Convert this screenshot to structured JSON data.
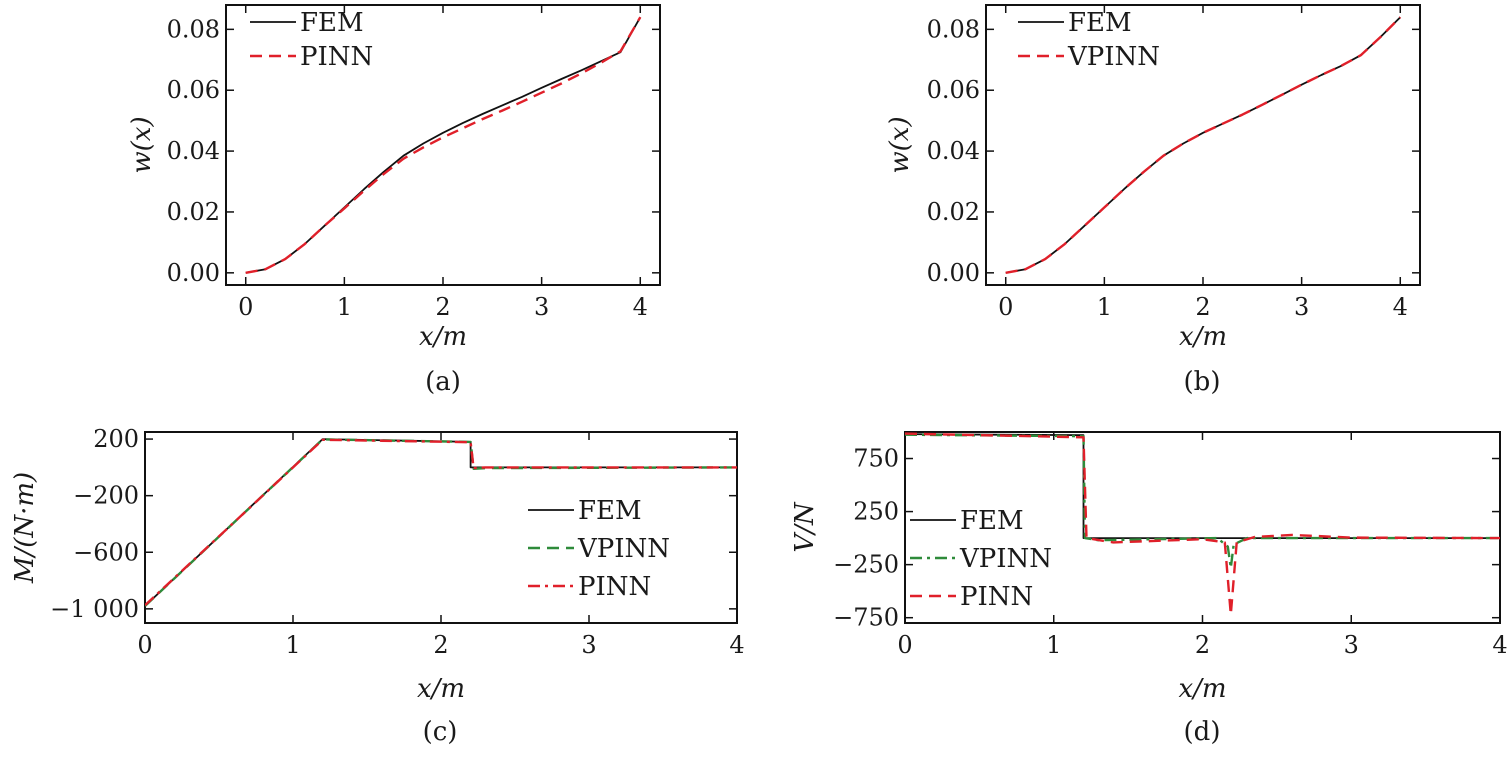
{
  "colors": {
    "fem": "#111111",
    "pinn": "#e0202a",
    "vpinn": "#2e8b3a",
    "axis": "#111111"
  },
  "chart_data": [
    {
      "panel": "a",
      "caption": "(a)",
      "type": "line",
      "xlabel": "x/m",
      "ylabel": "w(x)",
      "xlim": [
        -0.2,
        4.2
      ],
      "ylim": [
        -0.004,
        0.088
      ],
      "xticks": [
        0,
        1,
        2,
        3,
        4
      ],
      "xticklabels": [
        "0",
        "1",
        "2",
        "3",
        "4"
      ],
      "yticks": [
        0,
        0.02,
        0.04,
        0.06,
        0.08
      ],
      "yticklabels": [
        "0.00",
        "0.02",
        "0.04",
        "0.06",
        "0.08"
      ],
      "legend_loc": "top-left",
      "series": [
        {
          "name": "FEM",
          "style": "solid",
          "color": "#111111",
          "x": [
            0,
            0.2,
            0.4,
            0.6,
            0.8,
            1.0,
            1.2,
            1.4,
            1.6,
            1.8,
            2.0,
            2.2,
            2.4,
            2.6,
            2.8,
            3.0,
            3.2,
            3.4,
            3.6,
            3.8,
            4.0
          ],
          "y": [
            0,
            0.0012,
            0.0045,
            0.0095,
            0.0155,
            0.0215,
            0.0275,
            0.0332,
            0.0385,
            0.0425,
            0.046,
            0.0492,
            0.0522,
            0.055,
            0.0578,
            0.0608,
            0.0637,
            0.0665,
            0.0695,
            0.0725,
            0.084
          ]
        },
        {
          "name": "PINN",
          "style": "dashed",
          "color": "#e0202a",
          "x": [
            0,
            0.2,
            0.4,
            0.6,
            0.8,
            1.0,
            1.2,
            1.4,
            1.6,
            1.8,
            2.0,
            2.2,
            2.4,
            2.6,
            2.8,
            3.0,
            3.2,
            3.4,
            3.6,
            3.8,
            4.0
          ],
          "y": [
            0,
            0.0012,
            0.0045,
            0.0095,
            0.0155,
            0.0212,
            0.027,
            0.0325,
            0.0375,
            0.0412,
            0.0445,
            0.0475,
            0.0505,
            0.0533,
            0.0562,
            0.0592,
            0.0622,
            0.0655,
            0.069,
            0.0728,
            0.084
          ]
        }
      ]
    },
    {
      "panel": "b",
      "caption": "(b)",
      "type": "line",
      "xlabel": "x/m",
      "ylabel": "w(x)",
      "xlim": [
        -0.2,
        4.2
      ],
      "ylim": [
        -0.004,
        0.088
      ],
      "xticks": [
        0,
        1,
        2,
        3,
        4
      ],
      "xticklabels": [
        "0",
        "1",
        "2",
        "3",
        "4"
      ],
      "yticks": [
        0,
        0.02,
        0.04,
        0.06,
        0.08
      ],
      "yticklabels": [
        "0.00",
        "0.02",
        "0.04",
        "0.06",
        "0.08"
      ],
      "legend_loc": "top-left",
      "series": [
        {
          "name": "FEM",
          "style": "solid",
          "color": "#111111",
          "x": [
            0,
            0.2,
            0.4,
            0.6,
            0.8,
            1.0,
            1.2,
            1.4,
            1.6,
            1.8,
            2.0,
            2.2,
            2.4,
            2.6,
            2.8,
            3.0,
            3.2,
            3.4,
            3.6,
            3.8,
            4.0
          ],
          "y": [
            0,
            0.0012,
            0.0045,
            0.0095,
            0.0155,
            0.0215,
            0.0275,
            0.0332,
            0.0385,
            0.0425,
            0.046,
            0.049,
            0.052,
            0.0552,
            0.0585,
            0.0618,
            0.065,
            0.068,
            0.0715,
            0.0775,
            0.084
          ]
        },
        {
          "name": "VPINN",
          "style": "dashed",
          "color": "#e0202a",
          "x": [
            0,
            0.2,
            0.4,
            0.6,
            0.8,
            1.0,
            1.2,
            1.4,
            1.6,
            1.8,
            2.0,
            2.2,
            2.4,
            2.6,
            2.8,
            3.0,
            3.2,
            3.4,
            3.6,
            3.8,
            4.0
          ],
          "y": [
            0,
            0.0012,
            0.0045,
            0.0095,
            0.0155,
            0.0215,
            0.0275,
            0.0332,
            0.0385,
            0.0425,
            0.046,
            0.049,
            0.052,
            0.0552,
            0.0585,
            0.0618,
            0.065,
            0.068,
            0.0715,
            0.0775,
            0.084
          ]
        }
      ]
    },
    {
      "panel": "c",
      "caption": "(c)",
      "type": "line",
      "xlabel": "x/m",
      "ylabel": "M/(N·m)",
      "xlim": [
        0,
        4
      ],
      "ylim": [
        -1100,
        250
      ],
      "xticks": [
        0,
        1,
        2,
        3,
        4
      ],
      "xticklabels": [
        "0",
        "1",
        "2",
        "3",
        "4"
      ],
      "yticks": [
        200,
        -200,
        -600,
        -1000
      ],
      "yticklabels": [
        "200",
        "−200",
        "−600",
        "−1 000"
      ],
      "legend_loc": "right",
      "series": [
        {
          "name": "FEM",
          "style": "solid",
          "color": "#111111",
          "x": [
            0,
            1.2,
            2.2,
            2.2,
            4.0
          ],
          "y": [
            -980,
            200,
            180,
            0,
            0
          ]
        },
        {
          "name": "VPINN",
          "style": "dashed",
          "color": "#2e8b3a",
          "x": [
            0,
            1.2,
            2.2,
            2.22,
            2.3,
            4.0
          ],
          "y": [
            -980,
            198,
            180,
            -10,
            -5,
            0
          ]
        },
        {
          "name": "PINN",
          "style": "dashdot",
          "color": "#e0202a",
          "x": [
            0,
            1.2,
            2.2,
            2.22,
            2.3,
            4.0
          ],
          "y": [
            -975,
            195,
            178,
            -5,
            0,
            0
          ]
        }
      ]
    },
    {
      "panel": "d",
      "caption": "(d)",
      "type": "line",
      "xlabel": "x/m",
      "ylabel": "V/N",
      "xlim": [
        0,
        4
      ],
      "ylim": [
        -800,
        1000
      ],
      "xticks": [
        0,
        1,
        2,
        3,
        4
      ],
      "xticklabels": [
        "0",
        "1",
        "2",
        "3",
        "4"
      ],
      "yticks": [
        750,
        250,
        -250,
        -750
      ],
      "yticklabels": [
        "750",
        "250",
        "−250",
        "−750"
      ],
      "legend_loc": "left",
      "series": [
        {
          "name": "FEM",
          "style": "solid",
          "color": "#111111",
          "x": [
            0,
            1.2,
            1.2,
            4.0
          ],
          "y": [
            980,
            970,
            0,
            0
          ]
        },
        {
          "name": "VPINN",
          "style": "dashdot",
          "color": "#2e8b3a",
          "x": [
            0,
            1.2,
            1.21,
            1.3,
            2.1,
            2.17,
            2.19,
            2.21,
            2.3,
            4.0
          ],
          "y": [
            975,
            960,
            0,
            -20,
            0,
            -80,
            -280,
            -60,
            0,
            0
          ]
        },
        {
          "name": "PINN",
          "style": "dashed",
          "color": "#e0202a",
          "x": [
            0,
            1.2,
            1.22,
            1.4,
            2.0,
            2.15,
            2.19,
            2.23,
            2.35,
            2.6,
            3.0,
            4.0
          ],
          "y": [
            985,
            950,
            0,
            -40,
            -10,
            -40,
            -720,
            -40,
            10,
            30,
            5,
            0
          ]
        }
      ]
    }
  ]
}
